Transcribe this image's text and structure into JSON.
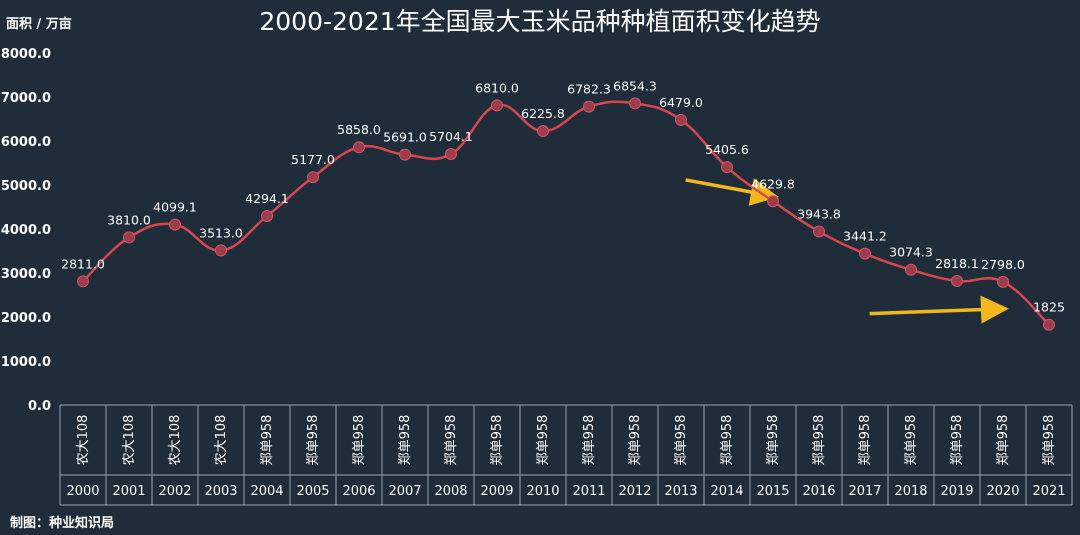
{
  "chart_data": {
    "type": "line",
    "title": "2000-2021年全国最大玉米品种种植面积变化趋势",
    "ylabel": "面积 / 万亩",
    "ylim": [
      0,
      8000
    ],
    "yticks": [
      "0.0",
      "1000.0",
      "2000.0",
      "3000.0",
      "4000.0",
      "5000.0",
      "6000.0",
      "7000.0",
      "8000.0"
    ],
    "x": [
      "2000",
      "2001",
      "2002",
      "2003",
      "2004",
      "2005",
      "2006",
      "2007",
      "2008",
      "2009",
      "2010",
      "2011",
      "2012",
      "2013",
      "2014",
      "2015",
      "2016",
      "2017",
      "2018",
      "2019",
      "2020",
      "2021"
    ],
    "varieties": [
      "农大108",
      "农大108",
      "农大108",
      "农大108",
      "郑单958",
      "郑单958",
      "郑单958",
      "郑单958",
      "郑单958",
      "郑单958",
      "郑单958",
      "郑单958",
      "郑单958",
      "郑单958",
      "郑单958",
      "郑单958",
      "郑单958",
      "郑单958",
      "郑单958",
      "郑单958",
      "郑单958",
      "郑单958"
    ],
    "values": [
      2811.0,
      3810.0,
      4099.1,
      3513.0,
      4294.1,
      5177.0,
      5858.0,
      5691.0,
      5704.1,
      6810.0,
      6225.8,
      6782.3,
      6854.3,
      6479.0,
      5405.6,
      4629.8,
      3943.8,
      3441.2,
      3074.3,
      2818.1,
      2798.0,
      1825
    ],
    "data_labels": [
      "2811.0",
      "3810.0",
      "4099.1",
      "3513.0",
      "4294.1",
      "5177.0",
      "5858.0",
      "5691.0",
      "5704.1",
      "6810.0",
      "6225.8",
      "6782.3",
      "6854.3",
      "6479.0",
      "5405.6",
      "4629.8",
      "3943.8",
      "3441.2",
      "3074.3",
      "2818.1",
      "2798.0",
      "1825"
    ],
    "line_color": "#d9474a",
    "marker_color": "#a13a4a",
    "annotation_color": "#f2b81a",
    "annotations": [
      {
        "type": "arrow",
        "direction": "down-right",
        "from_x": "2013",
        "to_x": "2015"
      },
      {
        "type": "arrow",
        "direction": "down-right",
        "from_x": "2017",
        "to_x": "2020"
      }
    ]
  },
  "footer": {
    "credit": "制图：种业知识局"
  }
}
